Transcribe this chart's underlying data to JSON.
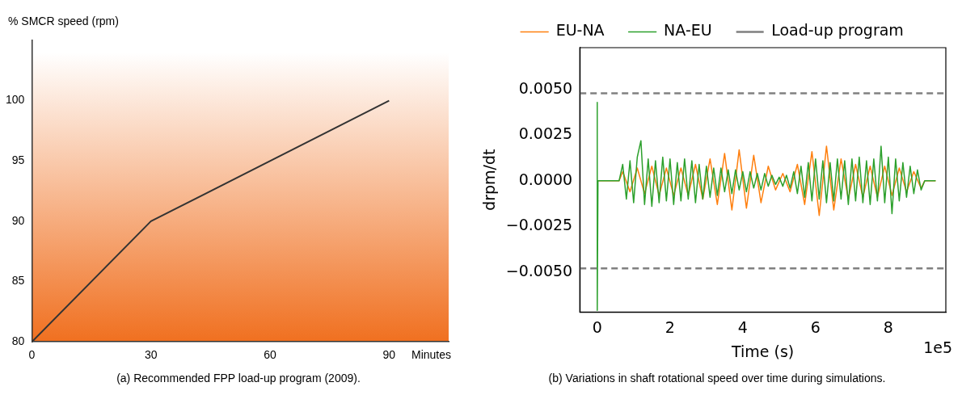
{
  "chart_data": [
    {
      "type": "line",
      "ylabel": "% SMCR speed (rpm)",
      "xlabel": "Minutes",
      "x": [
        0,
        30,
        90
      ],
      "series": [
        {
          "color": "#333333",
          "values": [
            80,
            90,
            100
          ]
        }
      ],
      "xlim": [
        0,
        105
      ],
      "xticks": [
        0,
        30,
        60,
        90
      ],
      "ylim": [
        80,
        105
      ],
      "yticks": [
        80,
        85,
        90,
        95,
        100
      ],
      "annotations": [
        "(a) Recommended FPP load-up program (2009)."
      ]
    },
    {
      "type": "line",
      "xlabel": "Time (s)",
      "ylabel": "drpm/dt",
      "legend": "top",
      "series": [
        {
          "name": "EU-NA",
          "color": "#ff7f0e",
          "x": [
            0,
            0.6,
            0.7,
            0.9,
            1.1,
            1.3,
            1.5,
            1.7,
            1.9,
            2.1,
            2.3,
            2.5,
            2.7,
            2.9,
            3.1,
            3.3,
            3.5,
            3.7,
            3.9,
            4.1,
            4.3,
            4.5,
            4.7,
            4.9,
            5.1,
            5.3,
            5.5,
            5.7,
            5.9,
            6.1,
            6.3,
            6.5,
            6.7,
            6.9,
            7.1,
            7.3,
            7.5,
            7.7,
            7.9,
            8.1,
            8.3,
            8.5,
            8.7,
            8.9,
            9.0,
            9.3
          ],
          "values": [
            0,
            0,
            0.0005,
            -0.0006,
            0.0007,
            -0.0007,
            0.0008,
            -0.0008,
            0.0007,
            -0.0008,
            0.0007,
            -0.0008,
            0.0009,
            -0.001,
            0.0012,
            -0.0013,
            0.0015,
            -0.0016,
            0.0017,
            -0.0015,
            0.0014,
            -0.0012,
            0.0008,
            -0.0005,
            0.0004,
            -0.0006,
            0.0009,
            -0.0013,
            0.0016,
            -0.0019,
            0.0019,
            -0.0016,
            0.0012,
            -0.001,
            0.0009,
            -0.0009,
            0.0008,
            -0.0009,
            0.0008,
            -0.0008,
            0.0007,
            -0.0006,
            0.0005,
            -0.0004,
            0,
            0
          ]
        },
        {
          "name": "NA-EU",
          "color": "#2ca02c",
          "x": [
            0,
            0,
            0,
            0.02,
            0.6,
            0.7,
            0.8,
            0.9,
            1.0,
            1.1,
            1.2,
            1.3,
            1.4,
            1.5,
            1.6,
            1.7,
            1.8,
            1.9,
            2.0,
            2.1,
            2.2,
            2.3,
            2.4,
            2.5,
            2.6,
            2.7,
            2.8,
            2.9,
            3.0,
            3.1,
            3.2,
            3.3,
            3.4,
            3.5,
            3.6,
            3.7,
            3.8,
            3.9,
            4.0,
            4.1,
            4.2,
            4.3,
            4.4,
            4.5,
            4.6,
            4.7,
            4.8,
            4.9,
            5.0,
            5.1,
            5.2,
            5.3,
            5.4,
            5.5,
            5.6,
            5.7,
            5.8,
            5.9,
            6.0,
            6.1,
            6.2,
            6.3,
            6.4,
            6.5,
            6.6,
            6.7,
            6.8,
            6.9,
            7.0,
            7.1,
            7.2,
            7.3,
            7.4,
            7.5,
            7.6,
            7.7,
            7.8,
            7.9,
            8.0,
            8.1,
            8.2,
            8.3,
            8.4,
            8.5,
            8.6,
            8.7,
            8.8,
            8.9,
            9.0,
            9.3
          ],
          "values": [
            0,
            0.0043,
            -0.0071,
            0,
            0,
            0.0009,
            -0.001,
            0.0011,
            -0.0012,
            0.0013,
            0.0022,
            -0.0013,
            0.0012,
            -0.0014,
            0.0011,
            -0.0012,
            0.0013,
            -0.0011,
            0.0012,
            -0.0013,
            0.001,
            -0.0011,
            0.0012,
            -0.001,
            0.0011,
            -0.0012,
            0.0009,
            -0.001,
            0.0008,
            -0.0009,
            0.0007,
            -0.0008,
            0.0007,
            -0.0006,
            0.0006,
            -0.0007,
            0.0006,
            -0.0005,
            0.0005,
            -0.0006,
            0.0005,
            -0.0004,
            0.0004,
            -0.0005,
            0.0004,
            -0.0003,
            0.0003,
            -0.0002,
            0.0002,
            -0.0003,
            0.0003,
            -0.0004,
            0.0005,
            -0.0007,
            0.0008,
            -0.0009,
            0.001,
            -0.0011,
            0.0012,
            -0.001,
            0.0011,
            -0.0012,
            0.001,
            -0.0011,
            0.0012,
            -0.001,
            0.0011,
            -0.0013,
            0.0012,
            -0.0011,
            0.0013,
            -0.0012,
            0.0011,
            -0.0013,
            0.0012,
            -0.0011,
            0.0019,
            -0.0012,
            0.0013,
            -0.0018,
            0.0012,
            -0.0011,
            0.001,
            -0.0009,
            0.0008,
            -0.0007,
            0.0006,
            -0.0005,
            0,
            0
          ]
        }
      ],
      "ref_lines": [
        {
          "axis": "y",
          "value": 0.0048,
          "label": "Load-up program",
          "color": "#808080",
          "line_style": "dashed"
        },
        {
          "axis": "y",
          "value": -0.0048,
          "color": "#808080",
          "line_style": "dashed"
        }
      ],
      "xlim": [
        -0.48,
        9.58
      ],
      "xticks": [
        0,
        2,
        4,
        6,
        8
      ],
      "ylim": [
        -0.0072,
        0.0073
      ],
      "yticks": [
        {
          "value": -0.005,
          "label": "−0.0050"
        },
        {
          "value": -0.0025,
          "label": "−0.0025"
        },
        {
          "value": 0,
          "label": "0.0000"
        },
        {
          "value": 0.0025,
          "label": "0.0025"
        },
        {
          "value": 0.005,
          "label": "0.0050"
        }
      ],
      "annotations": [
        "1e5",
        "(b) Variations in shaft rotational speed over time during simulations."
      ]
    }
  ]
}
